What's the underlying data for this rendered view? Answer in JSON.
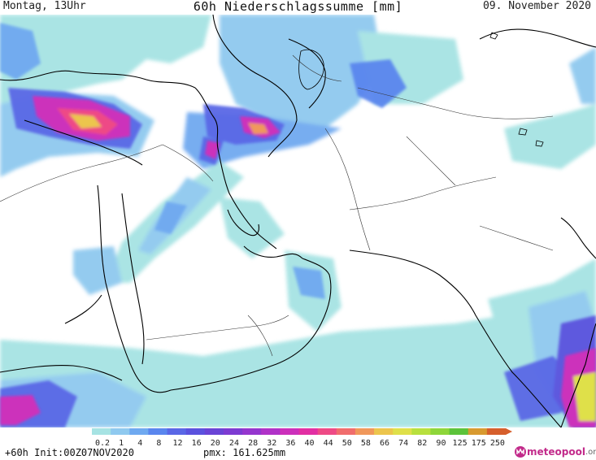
{
  "header": {
    "left_label": "Montag, 13Uhr",
    "title": "60h Niederschlagssumme [mm]",
    "right_label": "09. November 2020"
  },
  "legend": {
    "ticks": [
      "0.2",
      "1",
      "4",
      "8",
      "12",
      "16",
      "20",
      "24",
      "28",
      "32",
      "36",
      "40",
      "44",
      "50",
      "58",
      "66",
      "74",
      "82",
      "90",
      "125",
      "175",
      "250"
    ],
    "colors": [
      "#a6e3e3",
      "#8fc9ef",
      "#6fa9f0",
      "#5a86ee",
      "#5a67e6",
      "#5b52de",
      "#6a44d6",
      "#7d3bd2",
      "#9536ce",
      "#b032c8",
      "#cc30bb",
      "#e22fa3",
      "#ee4a86",
      "#f06d6d",
      "#f0985b",
      "#ecc54d",
      "#dfe04a",
      "#b8e03e",
      "#8ed63a",
      "#5cc33a",
      "#d89a30",
      "#d65f2c"
    ]
  },
  "footer": {
    "init_label": "+60h Init:00Z07NOV2020",
    "pmx_label": "pmx: 161.625mm"
  },
  "brand": {
    "name": "meteopool",
    "tld": ".org",
    "icon": "meteopool-logo-icon"
  },
  "map": {
    "background_color": "#ffffff",
    "border_color": "#000000"
  }
}
